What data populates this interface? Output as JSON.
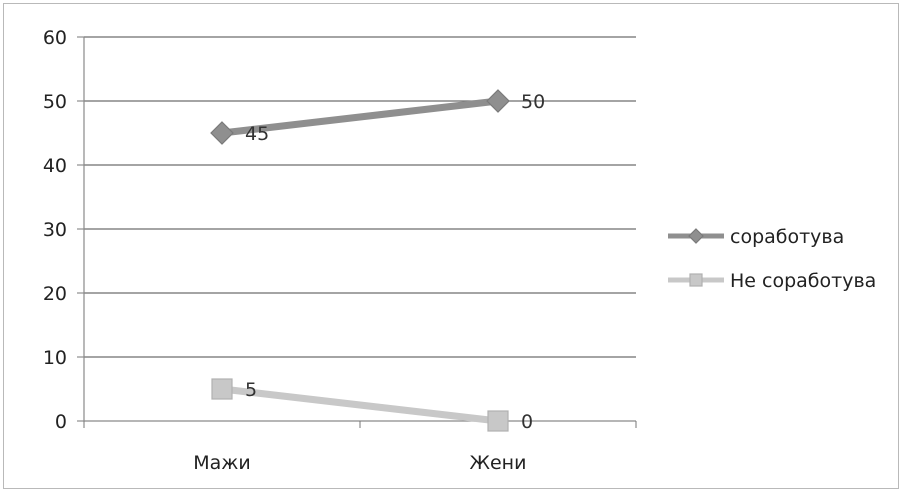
{
  "chart_data": {
    "type": "line",
    "categories": [
      "Мажи",
      "Жени"
    ],
    "series": [
      {
        "name": "соработува",
        "values": [
          45,
          50
        ],
        "color": "#8f8f8f",
        "marker": "diamond"
      },
      {
        "name": "Не соработува",
        "values": [
          5,
          0
        ],
        "color": "#c8c8c8",
        "marker": "square"
      }
    ],
    "ylim": [
      0,
      60
    ],
    "y_ticks": [
      "0",
      "10",
      "20",
      "30",
      "40",
      "50",
      "60"
    ],
    "data_labels": [
      [
        "45",
        "50"
      ],
      [
        "5",
        "0"
      ]
    ],
    "grid": true,
    "legend": "right"
  }
}
